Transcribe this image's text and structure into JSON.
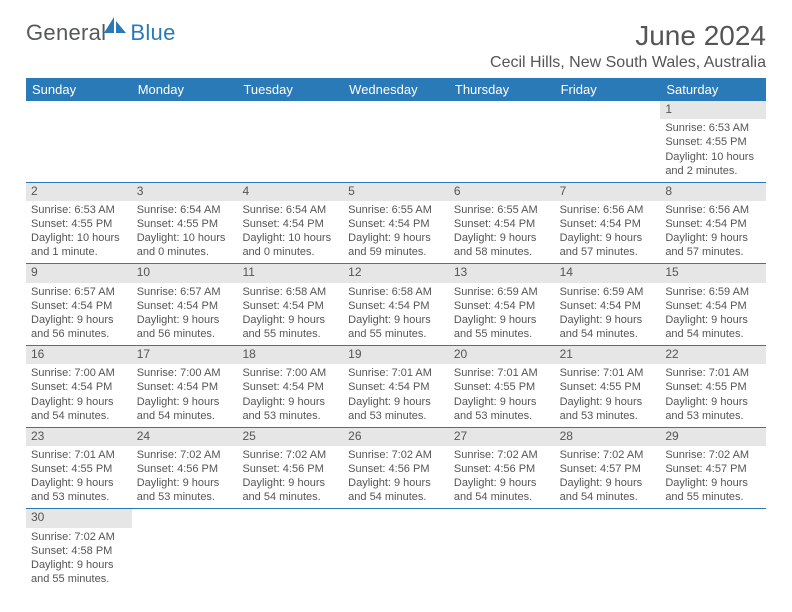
{
  "logo": {
    "part1": "General",
    "part2": "Blue"
  },
  "title": "June 2024",
  "location": "Cecil Hills, New South Wales, Australia",
  "weekdays": [
    "Sunday",
    "Monday",
    "Tuesday",
    "Wednesday",
    "Thursday",
    "Friday",
    "Saturday"
  ],
  "colors": {
    "header_bg": "#2a7ab8",
    "daynum_bg": "#e6e6e6",
    "divider": "#2a7ab8",
    "text": "#555555",
    "logo_gray": "#55595c",
    "logo_blue": "#2a7ab8"
  },
  "weeks": [
    [
      null,
      null,
      null,
      null,
      null,
      null,
      {
        "n": "1",
        "sunrise": "Sunrise: 6:53 AM",
        "sunset": "Sunset: 4:55 PM",
        "daylight1": "Daylight: 10 hours",
        "daylight2": "and 2 minutes."
      }
    ],
    [
      {
        "n": "2",
        "sunrise": "Sunrise: 6:53 AM",
        "sunset": "Sunset: 4:55 PM",
        "daylight1": "Daylight: 10 hours",
        "daylight2": "and 1 minute."
      },
      {
        "n": "3",
        "sunrise": "Sunrise: 6:54 AM",
        "sunset": "Sunset: 4:55 PM",
        "daylight1": "Daylight: 10 hours",
        "daylight2": "and 0 minutes."
      },
      {
        "n": "4",
        "sunrise": "Sunrise: 6:54 AM",
        "sunset": "Sunset: 4:54 PM",
        "daylight1": "Daylight: 10 hours",
        "daylight2": "and 0 minutes."
      },
      {
        "n": "5",
        "sunrise": "Sunrise: 6:55 AM",
        "sunset": "Sunset: 4:54 PM",
        "daylight1": "Daylight: 9 hours",
        "daylight2": "and 59 minutes."
      },
      {
        "n": "6",
        "sunrise": "Sunrise: 6:55 AM",
        "sunset": "Sunset: 4:54 PM",
        "daylight1": "Daylight: 9 hours",
        "daylight2": "and 58 minutes."
      },
      {
        "n": "7",
        "sunrise": "Sunrise: 6:56 AM",
        "sunset": "Sunset: 4:54 PM",
        "daylight1": "Daylight: 9 hours",
        "daylight2": "and 57 minutes."
      },
      {
        "n": "8",
        "sunrise": "Sunrise: 6:56 AM",
        "sunset": "Sunset: 4:54 PM",
        "daylight1": "Daylight: 9 hours",
        "daylight2": "and 57 minutes."
      }
    ],
    [
      {
        "n": "9",
        "sunrise": "Sunrise: 6:57 AM",
        "sunset": "Sunset: 4:54 PM",
        "daylight1": "Daylight: 9 hours",
        "daylight2": "and 56 minutes."
      },
      {
        "n": "10",
        "sunrise": "Sunrise: 6:57 AM",
        "sunset": "Sunset: 4:54 PM",
        "daylight1": "Daylight: 9 hours",
        "daylight2": "and 56 minutes."
      },
      {
        "n": "11",
        "sunrise": "Sunrise: 6:58 AM",
        "sunset": "Sunset: 4:54 PM",
        "daylight1": "Daylight: 9 hours",
        "daylight2": "and 55 minutes."
      },
      {
        "n": "12",
        "sunrise": "Sunrise: 6:58 AM",
        "sunset": "Sunset: 4:54 PM",
        "daylight1": "Daylight: 9 hours",
        "daylight2": "and 55 minutes."
      },
      {
        "n": "13",
        "sunrise": "Sunrise: 6:59 AM",
        "sunset": "Sunset: 4:54 PM",
        "daylight1": "Daylight: 9 hours",
        "daylight2": "and 55 minutes."
      },
      {
        "n": "14",
        "sunrise": "Sunrise: 6:59 AM",
        "sunset": "Sunset: 4:54 PM",
        "daylight1": "Daylight: 9 hours",
        "daylight2": "and 54 minutes."
      },
      {
        "n": "15",
        "sunrise": "Sunrise: 6:59 AM",
        "sunset": "Sunset: 4:54 PM",
        "daylight1": "Daylight: 9 hours",
        "daylight2": "and 54 minutes."
      }
    ],
    [
      {
        "n": "16",
        "sunrise": "Sunrise: 7:00 AM",
        "sunset": "Sunset: 4:54 PM",
        "daylight1": "Daylight: 9 hours",
        "daylight2": "and 54 minutes."
      },
      {
        "n": "17",
        "sunrise": "Sunrise: 7:00 AM",
        "sunset": "Sunset: 4:54 PM",
        "daylight1": "Daylight: 9 hours",
        "daylight2": "and 54 minutes."
      },
      {
        "n": "18",
        "sunrise": "Sunrise: 7:00 AM",
        "sunset": "Sunset: 4:54 PM",
        "daylight1": "Daylight: 9 hours",
        "daylight2": "and 53 minutes."
      },
      {
        "n": "19",
        "sunrise": "Sunrise: 7:01 AM",
        "sunset": "Sunset: 4:54 PM",
        "daylight1": "Daylight: 9 hours",
        "daylight2": "and 53 minutes."
      },
      {
        "n": "20",
        "sunrise": "Sunrise: 7:01 AM",
        "sunset": "Sunset: 4:55 PM",
        "daylight1": "Daylight: 9 hours",
        "daylight2": "and 53 minutes."
      },
      {
        "n": "21",
        "sunrise": "Sunrise: 7:01 AM",
        "sunset": "Sunset: 4:55 PM",
        "daylight1": "Daylight: 9 hours",
        "daylight2": "and 53 minutes."
      },
      {
        "n": "22",
        "sunrise": "Sunrise: 7:01 AM",
        "sunset": "Sunset: 4:55 PM",
        "daylight1": "Daylight: 9 hours",
        "daylight2": "and 53 minutes."
      }
    ],
    [
      {
        "n": "23",
        "sunrise": "Sunrise: 7:01 AM",
        "sunset": "Sunset: 4:55 PM",
        "daylight1": "Daylight: 9 hours",
        "daylight2": "and 53 minutes."
      },
      {
        "n": "24",
        "sunrise": "Sunrise: 7:02 AM",
        "sunset": "Sunset: 4:56 PM",
        "daylight1": "Daylight: 9 hours",
        "daylight2": "and 53 minutes."
      },
      {
        "n": "25",
        "sunrise": "Sunrise: 7:02 AM",
        "sunset": "Sunset: 4:56 PM",
        "daylight1": "Daylight: 9 hours",
        "daylight2": "and 54 minutes."
      },
      {
        "n": "26",
        "sunrise": "Sunrise: 7:02 AM",
        "sunset": "Sunset: 4:56 PM",
        "daylight1": "Daylight: 9 hours",
        "daylight2": "and 54 minutes."
      },
      {
        "n": "27",
        "sunrise": "Sunrise: 7:02 AM",
        "sunset": "Sunset: 4:56 PM",
        "daylight1": "Daylight: 9 hours",
        "daylight2": "and 54 minutes."
      },
      {
        "n": "28",
        "sunrise": "Sunrise: 7:02 AM",
        "sunset": "Sunset: 4:57 PM",
        "daylight1": "Daylight: 9 hours",
        "daylight2": "and 54 minutes."
      },
      {
        "n": "29",
        "sunrise": "Sunrise: 7:02 AM",
        "sunset": "Sunset: 4:57 PM",
        "daylight1": "Daylight: 9 hours",
        "daylight2": "and 55 minutes."
      }
    ],
    [
      {
        "n": "30",
        "sunrise": "Sunrise: 7:02 AM",
        "sunset": "Sunset: 4:58 PM",
        "daylight1": "Daylight: 9 hours",
        "daylight2": "and 55 minutes."
      },
      null,
      null,
      null,
      null,
      null,
      null
    ]
  ]
}
